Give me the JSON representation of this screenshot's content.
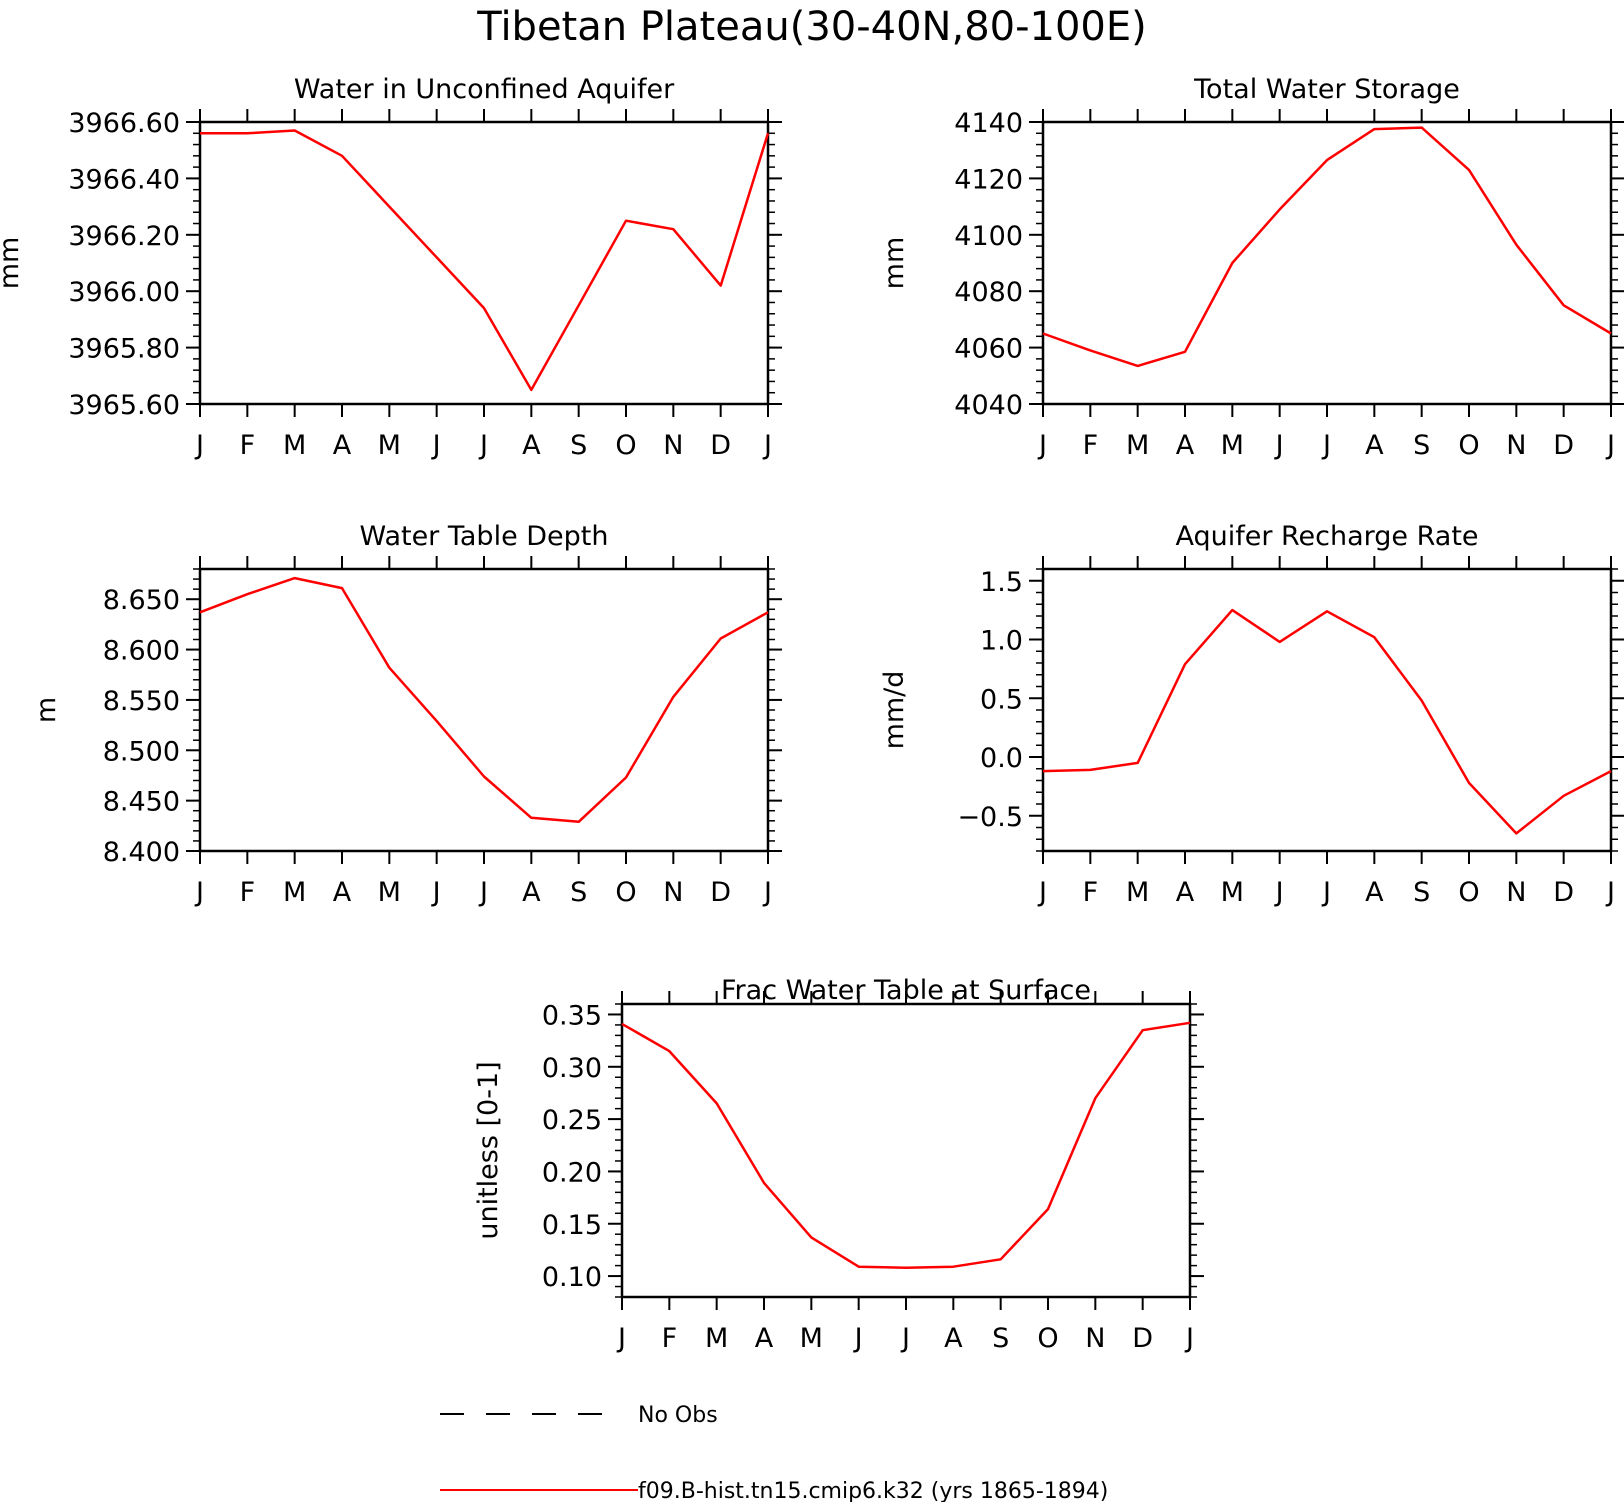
{
  "figure": {
    "title": "Tibetan Plateau(30-40N,80-100E)"
  },
  "legend": {
    "entries": [
      {
        "label": "No Obs",
        "style": "dashed",
        "color": "#000000"
      },
      {
        "label": "f09.B-hist.tn15.cmip6.k32 (yrs 1865-1894)",
        "style": "solid",
        "color": "#ff0000"
      }
    ]
  },
  "chart_data": [
    {
      "type": "line",
      "title": "Water in Unconfined Aquifer",
      "ylabel": "mm",
      "categories": [
        "J",
        "F",
        "M",
        "A",
        "M",
        "J",
        "J",
        "A",
        "S",
        "O",
        "N",
        "D",
        "J"
      ],
      "ylim": [
        3965.6,
        3966.6
      ],
      "yticks": [
        3965.6,
        3965.8,
        3966.0,
        3966.2,
        3966.4,
        3966.6
      ],
      "ytick_labels": [
        "3965.60",
        "3965.80",
        "3966.00",
        "3966.20",
        "3966.40",
        "3966.60"
      ],
      "minor_per_major": 4,
      "series": [
        {
          "color": "#ff0000",
          "values": [
            3966.56,
            3966.56,
            3966.57,
            3966.48,
            3966.3,
            3966.12,
            3965.94,
            3965.65,
            3965.95,
            3966.25,
            3966.22,
            3966.02,
            3966.56
          ]
        }
      ]
    },
    {
      "type": "line",
      "title": "Total Water Storage",
      "ylabel": "mm",
      "categories": [
        "J",
        "F",
        "M",
        "A",
        "M",
        "J",
        "J",
        "A",
        "S",
        "O",
        "N",
        "D",
        "J"
      ],
      "ylim": [
        4040,
        4140
      ],
      "yticks": [
        4040,
        4060,
        4080,
        4100,
        4120,
        4140
      ],
      "ytick_labels": [
        "4040",
        "4060",
        "4080",
        "4100",
        "4120",
        "4140"
      ],
      "minor_per_major": 4,
      "series": [
        {
          "color": "#ff0000",
          "values": [
            4065,
            4059,
            4053.5,
            4058.5,
            4090,
            4109,
            4126.5,
            4137.5,
            4138,
            4123,
            4096.5,
            4075,
            4065
          ]
        }
      ]
    },
    {
      "type": "line",
      "title": "Water Table Depth",
      "ylabel": "m",
      "categories": [
        "J",
        "F",
        "M",
        "A",
        "M",
        "J",
        "J",
        "A",
        "S",
        "O",
        "N",
        "D",
        "J"
      ],
      "ylim": [
        8.4,
        8.68
      ],
      "yticks": [
        8.4,
        8.45,
        8.5,
        8.55,
        8.6,
        8.65
      ],
      "ytick_labels": [
        "8.400",
        "8.450",
        "8.500",
        "8.550",
        "8.600",
        "8.650"
      ],
      "minor_per_major": 4,
      "series": [
        {
          "color": "#ff0000",
          "values": [
            8.637,
            8.655,
            8.671,
            8.661,
            8.582,
            8.529,
            8.474,
            8.433,
            8.429,
            8.473,
            8.553,
            8.611,
            8.637
          ]
        }
      ]
    },
    {
      "type": "line",
      "title": "Aquifer Recharge Rate",
      "ylabel": "mm/d",
      "categories": [
        "J",
        "F",
        "M",
        "A",
        "M",
        "J",
        "J",
        "A",
        "S",
        "O",
        "N",
        "D",
        "J"
      ],
      "ylim": [
        -0.8,
        1.6
      ],
      "yticks": [
        -0.5,
        0.0,
        0.5,
        1.0,
        1.5
      ],
      "ytick_labels": [
        "−0.5",
        "0.0",
        "0.5",
        "1.0",
        "1.5"
      ],
      "minor_per_major": 4,
      "series": [
        {
          "color": "#ff0000",
          "values": [
            -0.12,
            -0.11,
            -0.05,
            0.79,
            1.25,
            0.98,
            1.24,
            1.02,
            0.48,
            -0.22,
            -0.65,
            -0.33,
            -0.12
          ]
        }
      ]
    },
    {
      "type": "line",
      "title": "Frac Water Table at Surface",
      "ylabel": "unitless [0-1]",
      "categories": [
        "J",
        "F",
        "M",
        "A",
        "M",
        "J",
        "J",
        "A",
        "S",
        "O",
        "N",
        "D",
        "J"
      ],
      "ylim": [
        0.08,
        0.36
      ],
      "yticks": [
        0.1,
        0.15,
        0.2,
        0.25,
        0.3,
        0.35
      ],
      "ytick_labels": [
        "0.10",
        "0.15",
        "0.20",
        "0.25",
        "0.30",
        "0.35"
      ],
      "minor_per_major": 4,
      "series": [
        {
          "color": "#ff0000",
          "values": [
            0.341,
            0.315,
            0.265,
            0.189,
            0.137,
            0.109,
            0.108,
            0.109,
            0.116,
            0.164,
            0.27,
            0.335,
            0.342
          ]
        }
      ]
    }
  ]
}
